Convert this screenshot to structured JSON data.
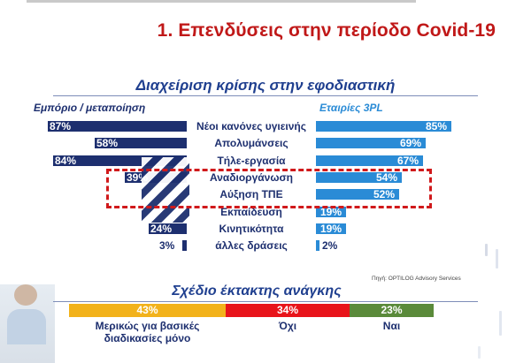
{
  "slide_title": "1. Επενδύσεις στην περίοδο Covid-19",
  "chart_data": [
    {
      "type": "bar",
      "title": "Διαχείριση κρίσης στην εφοδιαστική",
      "categories": [
        "Νέοι κανόνες υγιεινής",
        "Απολυμάνσεις",
        "Τήλε-εργασία",
        "Αναδιοργάνωση",
        "Αύξηση ΤΠΕ",
        "Εκπαίδευση",
        "Κινητικότητα",
        "άλλες δράσεις"
      ],
      "series": [
        {
          "name": "Εμπόριο / μεταποίηση",
          "values": [
            87,
            58,
            84,
            39,
            null,
            null,
            24,
            3
          ],
          "labels": [
            "87%",
            "58%",
            "84%",
            "39%",
            "",
            "",
            "24%",
            "3%"
          ],
          "color": "#1d2f6f"
        },
        {
          "name": "Εταιρίες 3PL",
          "values": [
            85,
            69,
            67,
            54,
            52,
            19,
            19,
            2
          ],
          "labels": [
            "85%",
            "69%",
            "67%",
            "54%",
            "52%",
            "19%",
            "19%",
            "2%"
          ],
          "color": "#2a8bd6"
        }
      ],
      "ylim": [
        0,
        100
      ],
      "highlighted_categories": [
        "Αναδιοργάνωση",
        "Αύξηση ΤΠΕ"
      ],
      "source": "Πηγή: OPTILOG Advisory Services"
    },
    {
      "type": "bar",
      "title": "Σχέδιο έκτακτης ανάγκης",
      "categories": [
        "Μερικώς για βασικές διαδικασίες μόνο",
        "Όχι",
        "Ναι"
      ],
      "values": [
        43,
        34,
        23
      ],
      "labels": [
        "43%",
        "34%",
        "23%"
      ],
      "colors": [
        "#f2b21b",
        "#e8141a",
        "#5a8a3a"
      ]
    }
  ]
}
